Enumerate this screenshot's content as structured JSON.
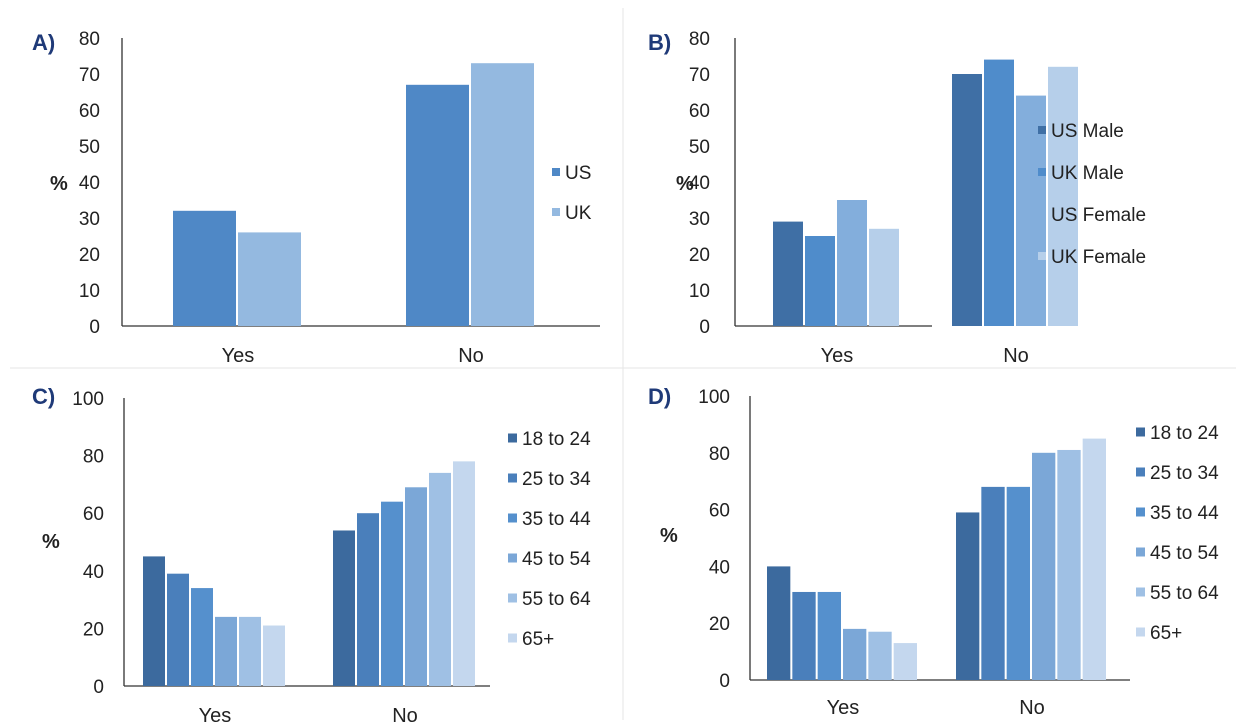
{
  "chart_data": [
    {
      "panel": "A)",
      "type": "bar",
      "ylabel": "%",
      "ylim": [
        0,
        80
      ],
      "yticks": [
        "0",
        "10",
        "20",
        "30",
        "40",
        "50",
        "60",
        "70",
        "80"
      ],
      "categories": [
        "Yes",
        "No"
      ],
      "series": [
        {
          "name": "US",
          "color": "#4f88c6",
          "values": [
            32,
            67
          ]
        },
        {
          "name": "UK",
          "color": "#94b9e0",
          "values": [
            26,
            73
          ]
        }
      ],
      "legend_position": "right"
    },
    {
      "panel": "B)",
      "type": "bar",
      "ylabel": "%",
      "ylim": [
        0,
        80
      ],
      "yticks": [
        "0",
        "10",
        "20",
        "30",
        "40",
        "50",
        "60",
        "70",
        "80"
      ],
      "categories": [
        "Yes",
        "No"
      ],
      "series": [
        {
          "name": "US Male",
          "color": "#3f6fa5",
          "values": [
            29,
            70
          ]
        },
        {
          "name": "UK Male",
          "color": "#4f8ccb",
          "values": [
            25,
            74
          ]
        },
        {
          "name": "US Female",
          "color": "#83aedc",
          "values": [
            35,
            64
          ]
        },
        {
          "name": "UK Female",
          "color": "#b6cfea",
          "values": [
            27,
            72
          ]
        }
      ],
      "legend_position": "right"
    },
    {
      "panel": "C)",
      "type": "bar",
      "ylabel": "%",
      "ylim": [
        0,
        100
      ],
      "yticks": [
        "0",
        "20",
        "40",
        "60",
        "80",
        "100"
      ],
      "categories": [
        "Yes",
        "No"
      ],
      "series": [
        {
          "name": "18 to 24",
          "color": "#3c6a9e",
          "values": [
            45,
            54
          ]
        },
        {
          "name": "25 to 34",
          "color": "#4a7fbb",
          "values": [
            39,
            60
          ]
        },
        {
          "name": "35 to 44",
          "color": "#5590cd",
          "values": [
            34,
            64
          ]
        },
        {
          "name": "45 to 54",
          "color": "#7ba7d7",
          "values": [
            24,
            69
          ]
        },
        {
          "name": "55 to 64",
          "color": "#9fc0e4",
          "values": [
            24,
            74
          ]
        },
        {
          "name": "65+",
          "color": "#c4d7ee",
          "values": [
            21,
            78
          ]
        }
      ],
      "legend_position": "right"
    },
    {
      "panel": "D)",
      "type": "bar",
      "ylabel": "%",
      "ylim": [
        0,
        100
      ],
      "yticks": [
        "0",
        "20",
        "40",
        "60",
        "80",
        "100"
      ],
      "categories": [
        "Yes",
        "No"
      ],
      "series": [
        {
          "name": "18 to 24",
          "color": "#3c6a9e",
          "values": [
            40,
            59
          ]
        },
        {
          "name": "25 to 34",
          "color": "#4a7fbb",
          "values": [
            31,
            68
          ]
        },
        {
          "name": "35 to 44",
          "color": "#5590cd",
          "values": [
            31,
            68
          ]
        },
        {
          "name": "45 to 54",
          "color": "#7ba7d7",
          "values": [
            18,
            80
          ]
        },
        {
          "name": "55 to 64",
          "color": "#9fc0e4",
          "values": [
            17,
            81
          ]
        },
        {
          "name": "65+",
          "color": "#c4d7ee",
          "values": [
            13,
            85
          ]
        }
      ],
      "legend_position": "right"
    }
  ]
}
